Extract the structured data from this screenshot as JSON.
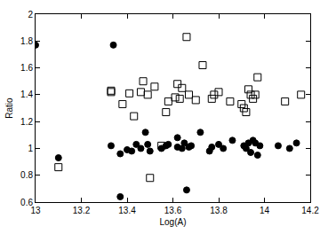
{
  "chart_data": {
    "type": "scatter",
    "x_label": "Log(A)",
    "y_label": "Ratio",
    "xlim": [
      13,
      14.2
    ],
    "xticks": [
      13,
      13.2,
      13.4,
      13.6,
      13.8,
      14,
      14.2
    ],
    "ylim": [
      0.6,
      2
    ],
    "yticks": [
      0.6,
      0.8,
      1,
      1.2,
      1.4,
      1.6,
      1.8,
      2
    ],
    "grid": false,
    "series": [
      {
        "color": "#000000",
        "marker": "circle",
        "x": [
          13.0,
          13.1,
          13.33,
          13.34,
          13.37,
          13.37,
          13.4,
          13.42,
          13.44,
          13.46,
          13.48,
          13.49,
          13.5,
          13.55,
          13.57,
          13.58,
          13.62,
          13.62,
          13.64,
          13.65,
          13.66,
          13.67,
          13.68,
          13.72,
          13.76,
          13.77,
          13.8,
          13.82,
          13.86,
          13.91,
          13.92,
          13.93,
          13.94,
          13.95,
          13.96,
          13.97,
          13.98,
          14.06,
          14.11,
          14.14
        ],
        "values": [
          1.77,
          0.93,
          1.02,
          1.77,
          0.96,
          0.64,
          0.99,
          0.98,
          1.03,
          1.0,
          1.12,
          1.03,
          0.98,
          1.0,
          1.02,
          1.03,
          1.01,
          1.08,
          1.0,
          1.04,
          0.69,
          1.01,
          1.02,
          1.12,
          0.98,
          1.01,
          1.03,
          1.0,
          1.06,
          1.02,
          1.0,
          1.04,
          0.97,
          1.06,
          1.04,
          0.95,
          1.02,
          1.02,
          1.0,
          1.04
        ]
      },
      {
        "color": "#000000",
        "marker": "square-open",
        "x": [
          13.1,
          13.33,
          13.33,
          13.38,
          13.41,
          13.43,
          13.46,
          13.47,
          13.49,
          13.5,
          13.52,
          13.55,
          13.57,
          13.58,
          13.61,
          13.62,
          13.63,
          13.64,
          13.66,
          13.67,
          13.7,
          13.73,
          13.77,
          13.78,
          13.8,
          13.85,
          13.9,
          13.91,
          13.92,
          13.93,
          13.94,
          13.95,
          13.96,
          13.97,
          14.09,
          14.16
        ],
        "values": [
          0.86,
          1.43,
          1.42,
          1.33,
          1.41,
          1.24,
          1.42,
          1.5,
          1.4,
          0.78,
          1.46,
          1.02,
          1.27,
          1.35,
          1.38,
          1.48,
          1.37,
          1.45,
          1.83,
          1.4,
          1.36,
          1.62,
          1.37,
          1.4,
          1.42,
          1.35,
          1.33,
          1.3,
          1.27,
          1.44,
          1.4,
          1.37,
          1.4,
          1.53,
          1.35,
          1.4
        ]
      }
    ]
  }
}
